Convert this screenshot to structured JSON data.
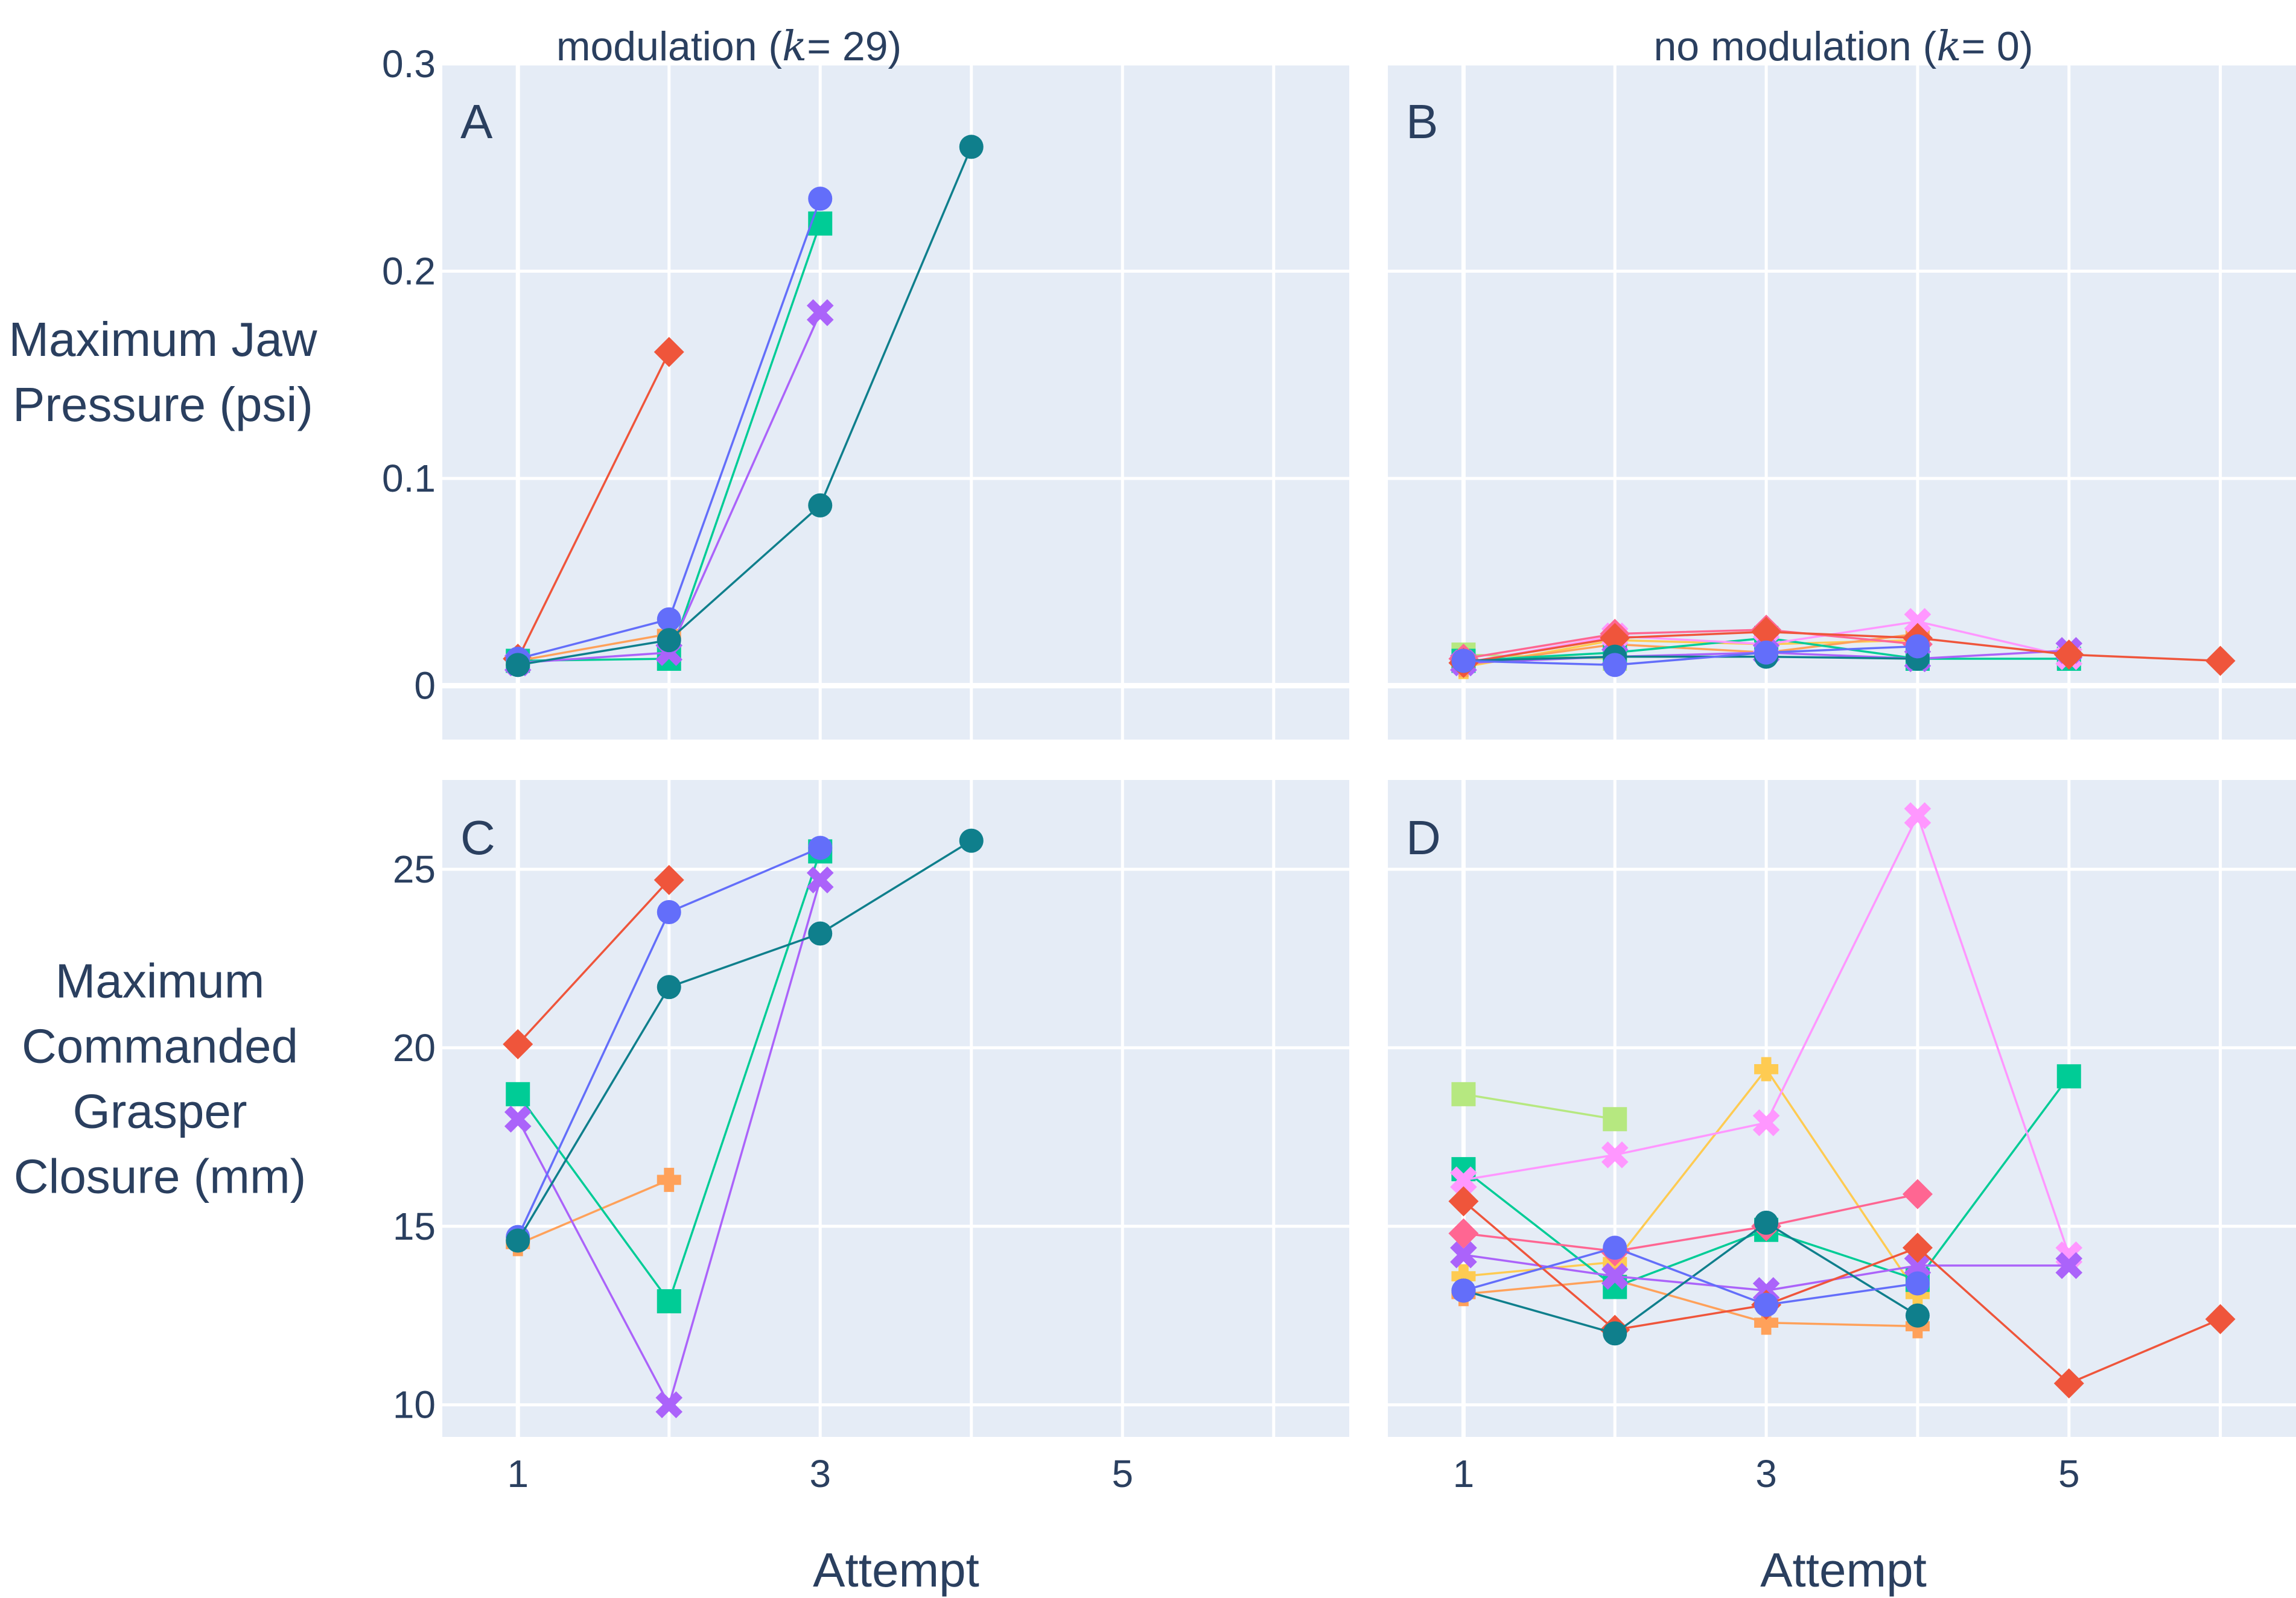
{
  "chart_data": {
    "type": "line",
    "layout": "2x2 subplots, shared x per column, shared y per row",
    "col_titles": [
      "modulation (k = 29)",
      "no modulation (k = 0)"
    ],
    "col_title_parts": [
      {
        "pre": "modulation (",
        "sym": "k",
        "post": "= 29)"
      },
      {
        "pre": "no modulation (",
        "sym": "k",
        "post": "= 0)"
      }
    ],
    "xlabel": "Attempt",
    "xticks": [
      1,
      3,
      5
    ],
    "xlim": [
      0.5,
      6.5
    ],
    "rows": [
      {
        "ylabel_lines": [
          "Maximum Jaw",
          "Pressure (psi)"
        ],
        "ylim": [
          -0.026,
          0.3
        ],
        "yticks": [
          0,
          0.1,
          0.2,
          0.3
        ],
        "ytick_labels": [
          "0",
          "0.1",
          "0.2",
          "0.3"
        ]
      },
      {
        "ylabel_lines": [
          "Maximum",
          "Commanded",
          "Grasper",
          "Closure (mm)"
        ],
        "ylim": [
          9.1,
          27.5
        ],
        "yticks": [
          10,
          15,
          20,
          25
        ],
        "ytick_labels": [
          "10",
          "15",
          "20",
          "25"
        ]
      }
    ],
    "colors": {
      "red": "#EF553B",
      "blue": "#636EFA",
      "green": "#00CC96",
      "purple": "#AB63FA",
      "orange": "#FFA15A",
      "teal": "#0F7F8C",
      "pink": "#FF97FF",
      "yellow": "#FECB52",
      "lime": "#B6E880",
      "rose": "#FF6692"
    },
    "panels": [
      {
        "label": "A",
        "row": 0,
        "col": 0,
        "series": [
          {
            "color": "red",
            "symbol": "diamond",
            "x": [
              1,
              2
            ],
            "y": [
              0.013,
              0.161
            ]
          },
          {
            "color": "orange",
            "symbol": "cross",
            "x": [
              1,
              2
            ],
            "y": [
              0.012,
              0.025
            ]
          },
          {
            "color": "green",
            "symbol": "square",
            "x": [
              1,
              2,
              3
            ],
            "y": [
              0.012,
              0.013,
              0.223
            ]
          },
          {
            "color": "purple",
            "symbol": "x",
            "x": [
              1,
              2,
              3
            ],
            "y": [
              0.011,
              0.016,
              0.18
            ]
          },
          {
            "color": "blue",
            "symbol": "circle",
            "x": [
              1,
              2,
              3
            ],
            "y": [
              0.013,
              0.032,
              0.235
            ]
          },
          {
            "color": "teal",
            "symbol": "circle",
            "x": [
              1,
              2,
              3,
              4
            ],
            "y": [
              0.01,
              0.022,
              0.087,
              0.26
            ]
          }
        ]
      },
      {
        "label": "B",
        "row": 0,
        "col": 1,
        "series": [
          {
            "color": "lime",
            "symbol": "square",
            "x": [
              1,
              2
            ],
            "y": [
              0.015,
              0.013
            ]
          },
          {
            "color": "yellow",
            "symbol": "cross",
            "x": [
              1,
              2,
              3,
              4
            ],
            "y": [
              0.009,
              0.022,
              0.02,
              0.022
            ]
          },
          {
            "color": "orange",
            "symbol": "cross",
            "x": [
              1,
              2,
              3,
              4
            ],
            "y": [
              0.01,
              0.02,
              0.016,
              0.025
            ]
          },
          {
            "color": "green",
            "symbol": "square",
            "x": [
              1,
              2,
              3,
              4,
              5
            ],
            "y": [
              0.012,
              0.016,
              0.023,
              0.013,
              0.013
            ]
          },
          {
            "color": "pink",
            "symbol": "x",
            "x": [
              1,
              2,
              3,
              4,
              5
            ],
            "y": [
              0.011,
              0.024,
              0.02,
              0.031,
              0.014
            ]
          },
          {
            "color": "purple",
            "symbol": "x",
            "x": [
              1,
              2,
              3,
              4,
              5
            ],
            "y": [
              0.011,
              0.014,
              0.016,
              0.013,
              0.017
            ]
          },
          {
            "color": "rose",
            "symbol": "diamond",
            "x": [
              1,
              2,
              3,
              4
            ],
            "y": [
              0.013,
              0.025,
              0.027,
              0.02
            ]
          },
          {
            "color": "red",
            "symbol": "diamond",
            "x": [
              1,
              2,
              3,
              4,
              5,
              6
            ],
            "y": [
              0.011,
              0.023,
              0.026,
              0.023,
              0.015,
              0.012
            ]
          },
          {
            "color": "teal",
            "symbol": "circle",
            "x": [
              1,
              2,
              3,
              4
            ],
            "y": [
              0.012,
              0.014,
              0.014,
              0.013
            ]
          },
          {
            "color": "blue",
            "symbol": "circle",
            "x": [
              1,
              2,
              3,
              4
            ],
            "y": [
              0.012,
              0.01,
              0.016,
              0.019
            ]
          }
        ]
      },
      {
        "label": "C",
        "row": 1,
        "col": 0,
        "series": [
          {
            "color": "orange",
            "symbol": "cross",
            "x": [
              1,
              2
            ],
            "y": [
              14.5,
              16.3
            ]
          },
          {
            "color": "red",
            "symbol": "diamond",
            "x": [
              1,
              2
            ],
            "y": [
              20.1,
              24.7
            ]
          },
          {
            "color": "green",
            "symbol": "square",
            "x": [
              1,
              2,
              3
            ],
            "y": [
              18.7,
              12.9,
              25.5
            ]
          },
          {
            "color": "purple",
            "symbol": "x",
            "x": [
              1,
              2,
              3
            ],
            "y": [
              18.0,
              10.0,
              24.7
            ]
          },
          {
            "color": "blue",
            "symbol": "circle",
            "x": [
              1,
              2,
              3
            ],
            "y": [
              14.7,
              23.8,
              25.6
            ]
          },
          {
            "color": "teal",
            "symbol": "circle",
            "x": [
              1,
              2,
              3,
              4
            ],
            "y": [
              14.6,
              21.7,
              23.2,
              25.8
            ]
          }
        ]
      },
      {
        "label": "D",
        "row": 1,
        "col": 1,
        "series": [
          {
            "color": "lime",
            "symbol": "square",
            "x": [
              1,
              2
            ],
            "y": [
              18.7,
              18.0
            ]
          },
          {
            "color": "yellow",
            "symbol": "cross",
            "x": [
              1,
              2,
              3,
              4
            ],
            "y": [
              13.6,
              14.0,
              19.4,
              13.1
            ]
          },
          {
            "color": "orange",
            "symbol": "cross",
            "x": [
              1,
              2,
              3,
              4
            ],
            "y": [
              13.1,
              13.5,
              12.3,
              12.2
            ]
          },
          {
            "color": "green",
            "symbol": "square",
            "x": [
              1,
              2,
              3,
              4,
              5
            ],
            "y": [
              16.6,
              13.3,
              14.9,
              13.5,
              19.2
            ]
          },
          {
            "color": "pink",
            "symbol": "x",
            "x": [
              1,
              2,
              3,
              4,
              5
            ],
            "y": [
              16.3,
              17.0,
              17.9,
              26.5,
              14.2
            ]
          },
          {
            "color": "purple",
            "symbol": "x",
            "x": [
              1,
              2,
              3,
              4,
              5
            ],
            "y": [
              14.2,
              13.6,
              13.2,
              13.9,
              13.9
            ]
          },
          {
            "color": "rose",
            "symbol": "diamond",
            "x": [
              1,
              2,
              3,
              4
            ],
            "y": [
              14.8,
              14.3,
              15.0,
              15.9
            ]
          },
          {
            "color": "red",
            "symbol": "diamond",
            "x": [
              1,
              2,
              3,
              4,
              5,
              6
            ],
            "y": [
              15.7,
              12.1,
              12.8,
              14.4,
              10.6,
              12.4
            ]
          },
          {
            "color": "teal",
            "symbol": "circle",
            "x": [
              1,
              2,
              3,
              4
            ],
            "y": [
              13.2,
              12.0,
              15.1,
              12.5
            ]
          },
          {
            "color": "blue",
            "symbol": "circle",
            "x": [
              1,
              2,
              3,
              4
            ],
            "y": [
              13.2,
              14.4,
              12.8,
              13.4
            ]
          }
        ]
      }
    ]
  }
}
